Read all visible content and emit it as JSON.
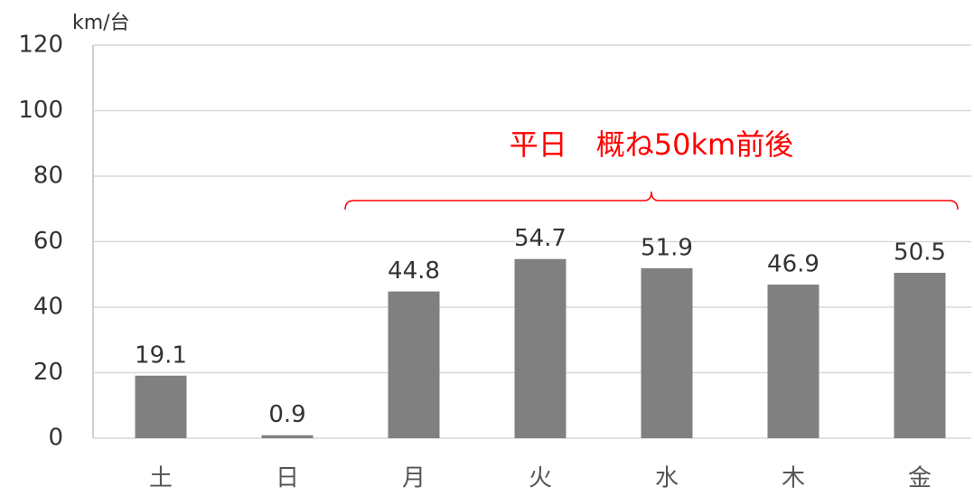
{
  "chart_data": {
    "type": "bar",
    "y_axis_label": "km/台",
    "categories": [
      "土",
      "日",
      "月",
      "火",
      "水",
      "木",
      "金"
    ],
    "values": [
      19.1,
      0.9,
      44.8,
      54.7,
      51.9,
      46.9,
      50.5
    ],
    "color": "#808080",
    "ylim": [
      0,
      120
    ],
    "yticks": [
      0,
      20,
      40,
      60,
      80,
      100,
      120
    ],
    "grid": true,
    "annotation": "平日　概ね50km前後",
    "annotation_color": "#ff0000"
  }
}
